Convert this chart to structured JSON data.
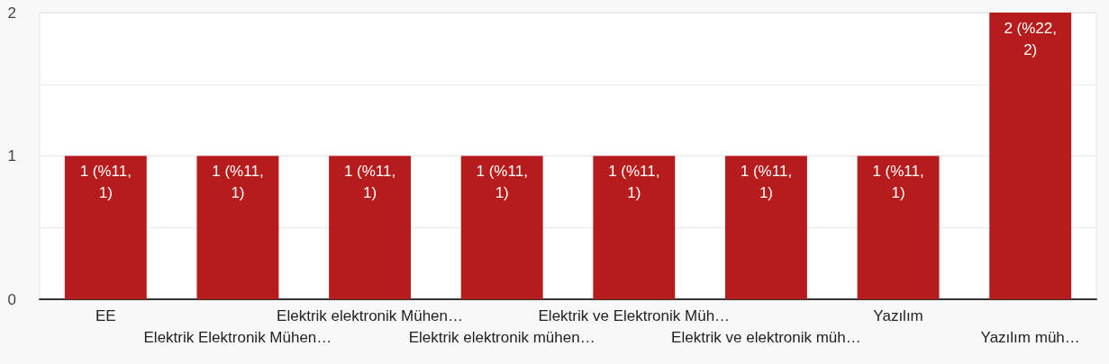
{
  "chart_data": {
    "type": "bar",
    "categories": [
      "EE",
      "Elektrik Elektronik Mühen…",
      "Elektrik elektronik Mühen…",
      "Elektrik elektronik mühen…",
      "Elektrik ve Elektronik Müh…",
      "Elektrik ve elektronik müh…",
      "Yazılım",
      "Yazılım müh…"
    ],
    "values": [
      1,
      1,
      1,
      1,
      1,
      1,
      1,
      2
    ],
    "value_labels": [
      "1 (%11,1)",
      "1 (%11,1)",
      "1 (%11,1)",
      "1 (%11,1)",
      "1 (%11,1)",
      "1 (%11,1)",
      "1 (%11,1)",
      "2 (%22,2)"
    ],
    "color": "#b71c1c",
    "ylim": [
      0,
      2
    ],
    "yticks": [
      0,
      {
        "value": 0.5,
        "label": null
      },
      1,
      {
        "value": 1.5,
        "label": null
      },
      2
    ],
    "grid": "y"
  }
}
